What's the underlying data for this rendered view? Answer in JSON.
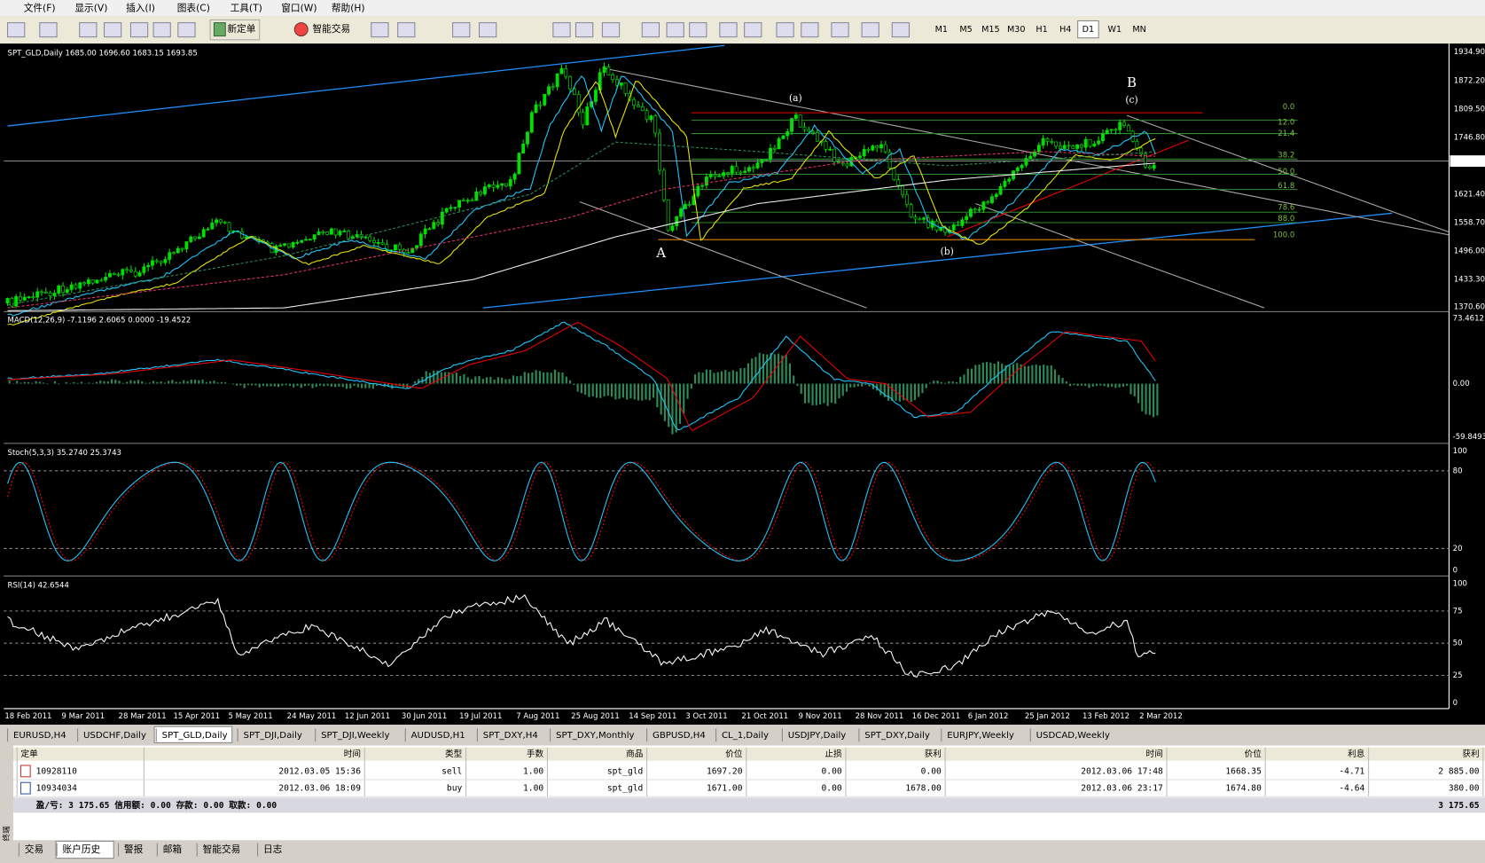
{
  "menu": [
    "文件(F)",
    "显示(V)",
    "插入(I)",
    "图表(C)",
    "工具(T)",
    "窗口(W)",
    "帮助(H)"
  ],
  "toolbar": {
    "new_order": "新定单",
    "expert": "智能交易",
    "timeframes": [
      "M1",
      "M5",
      "M15",
      "M30",
      "H1",
      "H4",
      "D1",
      "W1",
      "MN"
    ]
  },
  "chart": {
    "header": "SPT_GLD,Daily  1685.00 1696.60 1683.15 1693.85",
    "price_axis": [
      "1934.90",
      "1872.20",
      "1809.50",
      "1746.80",
      "1621.40",
      "1558.70",
      "1496.00",
      "1433.30",
      "1370.60"
    ],
    "current_price": "1693.85",
    "fib_levels": [
      "0.0",
      "12.0",
      "21.4",
      "38.2",
      "50.0",
      "61.8",
      "78.6",
      "88.0",
      "100.0"
    ],
    "annotations": [
      "A",
      "B",
      "(a)",
      "(b)",
      "(c)"
    ],
    "macd": {
      "label": "MACD(12,26,9) -7.1196 2.6065 0.0000 -19.4522",
      "axis": [
        "73.4612",
        "0.00",
        "-59.8493"
      ]
    },
    "stoch": {
      "label": "Stoch(5,3,3) 35.2740 25.3743",
      "axis": [
        "100",
        "80",
        "20",
        "0"
      ]
    },
    "rsi": {
      "label": "RSI(14) 42.6544",
      "axis": [
        "100",
        "75",
        "50",
        "25",
        "0"
      ]
    },
    "dates": [
      "18 Feb 2011",
      "9 Mar 2011",
      "28 Mar 2011",
      "15 Apr 2011",
      "5 May 2011",
      "24 May 2011",
      "12 Jun 2011",
      "30 Jun 2011",
      "19 Jul 2011",
      "7 Aug 2011",
      "25 Aug 2011",
      "14 Sep 2011",
      "3 Oct 2011",
      "21 Oct 2011",
      "9 Nov 2011",
      "28 Nov 2011",
      "16 Dec 2011",
      "6 Jan 2012",
      "25 Jan 2012",
      "13 Feb 2012",
      "2 Mar 2012"
    ]
  },
  "chart_tabs": [
    "EURUSD,H4",
    "USDCHF,Daily",
    "SPT_GLD,Daily",
    "SPT_DJI,Daily",
    "SPT_DJI,Weekly",
    "AUDUSD,H1",
    "SPT_DXY,H4",
    "SPT_DXY,Monthly",
    "GBPUSD,H4",
    "CL_1,Daily",
    "USDJPY,Daily",
    "SPT_DXY,Daily",
    "EURJPY,Weekly",
    "USDCAD,Weekly"
  ],
  "orders": {
    "columns": [
      "定单",
      "时间",
      "类型",
      "手数",
      "商品",
      "价位",
      "止损",
      "获利",
      "时间",
      "价位",
      "利息",
      "获利"
    ],
    "rows": [
      [
        "10928110",
        "2012.03.05 15:36",
        "sell",
        "1.00",
        "spt_gld",
        "1697.20",
        "0.00",
        "0.00",
        "2012.03.06 17:48",
        "1668.35",
        "-4.71",
        "2 885.00"
      ],
      [
        "10934034",
        "2012.03.06 18:09",
        "buy",
        "1.00",
        "spt_gld",
        "1671.00",
        "0.00",
        "1678.00",
        "2012.03.06 23:17",
        "1674.80",
        "-4.64",
        "380.00"
      ]
    ],
    "summary": "盈/亏: 3 175.65  信用额: 0.00  存款: 0.00  取款: 0.00",
    "total": "3 175.65"
  },
  "bottom_tabs": [
    "交易",
    "账户历史",
    "警报",
    "邮箱",
    "智能交易",
    "日志"
  ],
  "side_label": "终端"
}
